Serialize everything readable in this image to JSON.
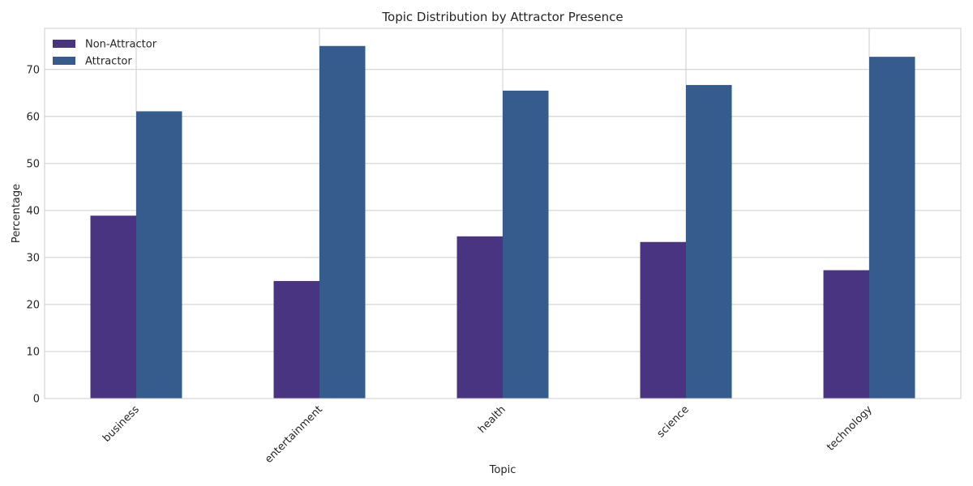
{
  "chart_data": {
    "type": "bar",
    "title": "Topic Distribution by Attractor Presence",
    "xlabel": "Topic",
    "ylabel": "Percentage",
    "categories": [
      "business",
      "entertainment",
      "health",
      "science",
      "technology"
    ],
    "series": [
      {
        "name": "Non-Attractor",
        "color": "#483480",
        "values": [
          38.9,
          25.0,
          34.5,
          33.3,
          27.3
        ]
      },
      {
        "name": "Attractor",
        "color": "#365c8d",
        "values": [
          61.1,
          75.0,
          65.5,
          66.7,
          72.7
        ]
      }
    ],
    "ylim": [
      0,
      78.75
    ],
    "yticks": [
      0,
      10,
      20,
      30,
      40,
      50,
      60,
      70
    ],
    "grid": true,
    "legend_position": "top-left",
    "x_tick_rotation": -45
  }
}
